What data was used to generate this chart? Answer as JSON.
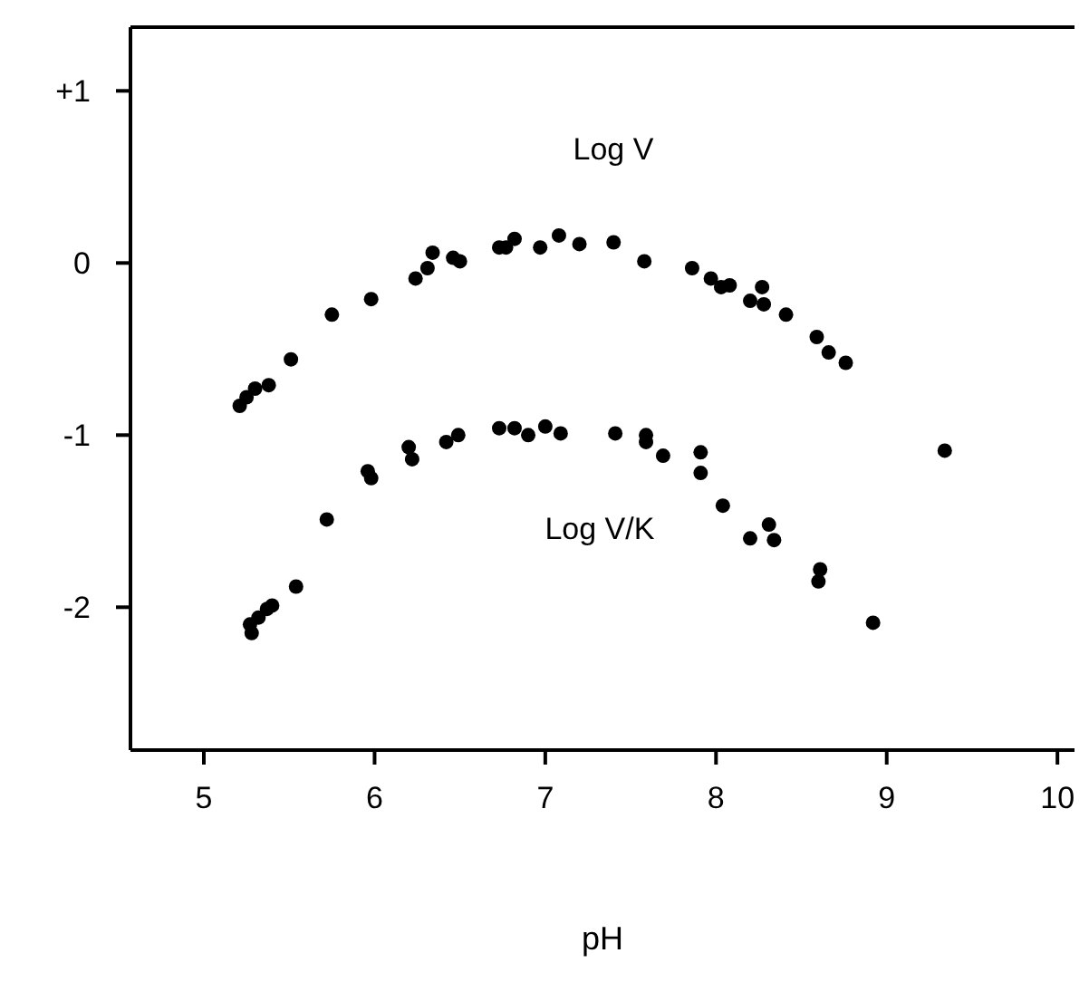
{
  "chart_data": {
    "type": "scatter",
    "xlabel": "pH",
    "xlim": [
      4.57,
      10.1
    ],
    "ylim": [
      -2.83,
      1.37
    ],
    "xticks": [
      5,
      6,
      7,
      8,
      9,
      10
    ],
    "yticks": [
      {
        "value": 1,
        "label": "+1"
      },
      0,
      -1,
      -2
    ],
    "grid": false,
    "legend": false,
    "marker": "circle",
    "series": [
      {
        "name": "Log V",
        "color": "#000000",
        "x": [
          5.21,
          5.25,
          5.3,
          5.38,
          5.51,
          5.75,
          5.98,
          6.24,
          6.31,
          6.34,
          6.46,
          6.5,
          6.73,
          6.77,
          6.82,
          6.97,
          7.08,
          7.2,
          7.4,
          7.58,
          7.86,
          7.97,
          8.03,
          8.08,
          8.2,
          8.27,
          8.28,
          8.41,
          8.59,
          8.66,
          8.76,
          9.34
        ],
        "values": [
          -0.83,
          -0.78,
          -0.73,
          -0.71,
          -0.56,
          -0.3,
          -0.21,
          -0.09,
          -0.03,
          0.06,
          0.03,
          0.01,
          0.09,
          0.09,
          0.14,
          0.09,
          0.16,
          0.11,
          0.12,
          0.01,
          -0.03,
          -0.09,
          -0.14,
          -0.13,
          -0.22,
          -0.14,
          -0.24,
          -0.3,
          -0.43,
          -0.52,
          -0.58,
          -1.09
        ]
      },
      {
        "name": "Log V/K",
        "color": "#000000",
        "x": [
          5.27,
          5.28,
          5.32,
          5.37,
          5.4,
          5.54,
          5.72,
          5.96,
          5.98,
          6.2,
          6.22,
          6.42,
          6.49,
          6.73,
          6.82,
          6.9,
          7.0,
          7.09,
          7.41,
          7.59,
          7.59,
          7.69,
          7.91,
          7.91,
          8.04,
          8.2,
          8.31,
          8.34,
          8.6,
          8.61,
          8.92
        ],
        "values": [
          -2.1,
          -2.15,
          -2.06,
          -2.01,
          -1.99,
          -1.88,
          -1.49,
          -1.21,
          -1.25,
          -1.07,
          -1.14,
          -1.04,
          -1.0,
          -0.96,
          -0.96,
          -1.0,
          -0.95,
          -0.99,
          -0.99,
          -1.0,
          -1.04,
          -1.12,
          -1.1,
          -1.22,
          -1.41,
          -1.6,
          -1.52,
          -1.61,
          -1.85,
          -1.78,
          -2.09
        ]
      }
    ]
  }
}
